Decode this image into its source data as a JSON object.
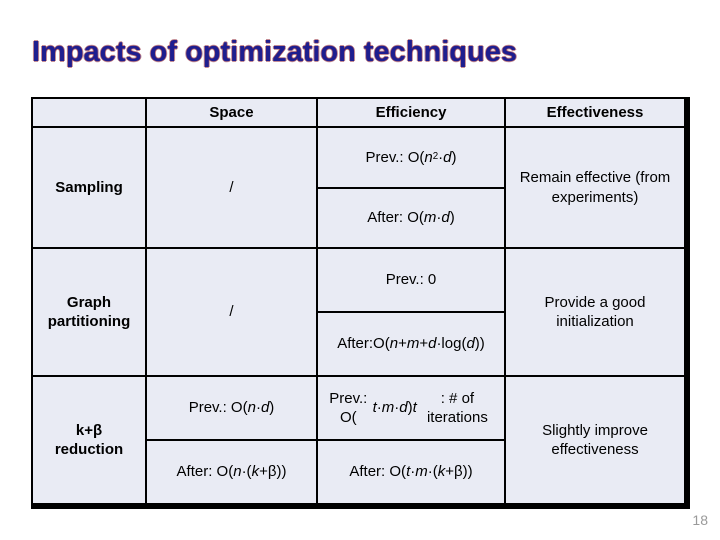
{
  "slide": {
    "title": "Impacts of optimization techniques",
    "page_number": "18"
  },
  "colors": {
    "title_fill": "#1e1e8f",
    "title_outline": "#8c1e2d",
    "cell_background": "#e9ebf4",
    "table_border": "#000000",
    "page_number": "#9a9a9a"
  },
  "table": {
    "headers": {
      "corner": "",
      "space": "Space",
      "efficiency": "Efficiency",
      "effectiveness": "Effectiveness"
    },
    "rows": {
      "sampling": {
        "label": "Sampling",
        "space": "/",
        "efficiency_prev": [
          {
            "t": "Prev.: O("
          },
          {
            "t": "n",
            "i": 1
          },
          {
            "t": "2",
            "sup": 1
          },
          {
            "t": "·"
          },
          {
            "t": "d",
            "i": 1
          },
          {
            "t": ")"
          }
        ],
        "efficiency_after": [
          {
            "t": "After: O("
          },
          {
            "t": "m",
            "i": 1
          },
          {
            "t": "·"
          },
          {
            "t": "d",
            "i": 1
          },
          {
            "t": ")"
          }
        ],
        "effectiveness": "Remain effective (from experiments)"
      },
      "graph_partitioning": {
        "label": "Graph partitioning",
        "space": "/",
        "efficiency_prev": [
          {
            "t": "Prev.: 0"
          }
        ],
        "efficiency_after": [
          {
            "t": "After:"
          },
          {
            "br": 1
          },
          {
            "t": "O("
          },
          {
            "t": "n",
            "i": 1
          },
          {
            "t": "+"
          },
          {
            "t": "m",
            "i": 1
          },
          {
            "t": "+"
          },
          {
            "t": "d",
            "i": 1
          },
          {
            "t": "·log("
          },
          {
            "t": "d",
            "i": 1
          },
          {
            "t": "))"
          }
        ],
        "effectiveness": "Provide a good initialization"
      },
      "kb_reduction": {
        "label": "k+β reduction",
        "space_prev": [
          {
            "t": "Prev.: O("
          },
          {
            "t": "n",
            "i": 1
          },
          {
            "t": "·"
          },
          {
            "t": "d",
            "i": 1
          },
          {
            "t": ")"
          }
        ],
        "space_after": [
          {
            "t": "After: O("
          },
          {
            "t": "n",
            "i": 1
          },
          {
            "t": "·("
          },
          {
            "t": "k",
            "i": 1
          },
          {
            "t": "+β))"
          }
        ],
        "efficiency_prev": [
          {
            "t": "Prev.: O("
          },
          {
            "t": "t",
            "i": 1
          },
          {
            "t": "·"
          },
          {
            "t": "m",
            "i": 1
          },
          {
            "t": "·"
          },
          {
            "t": "d",
            "i": 1
          },
          {
            "t": ")"
          },
          {
            "br": 1
          },
          {
            "t": "t",
            "i": 1
          },
          {
            "t": " : # of iterations"
          }
        ],
        "efficiency_after": [
          {
            "t": "After: O("
          },
          {
            "t": "t",
            "i": 1
          },
          {
            "t": "·"
          },
          {
            "t": "m",
            "i": 1
          },
          {
            "t": "·("
          },
          {
            "t": "k",
            "i": 1
          },
          {
            "t": "+β))"
          }
        ],
        "effectiveness": "Slightly improve effectiveness"
      }
    }
  }
}
